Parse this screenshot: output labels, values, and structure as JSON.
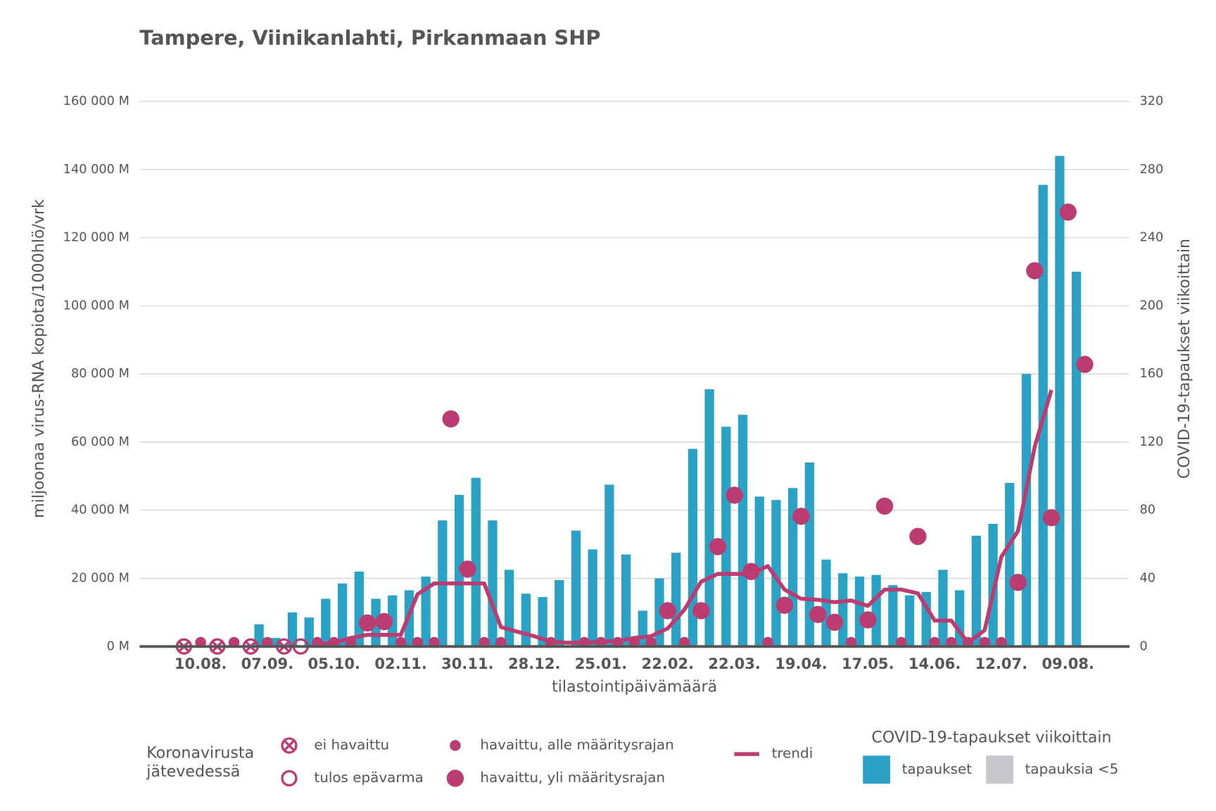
{
  "chart_data": {
    "type": "bar",
    "title": "Tampere, Viinikanlahti, Pirkanmaan SHP",
    "xlabel": "tilastointipäivämäärä",
    "ylabel": "miljoonaa virus-RNA kopiota/1000hlö/vrk",
    "y2label": "COVID-19-tapaukset viikoittain",
    "legend_title": [
      "Koronavirusta",
      "jätevedessä"
    ],
    "categories": [
      null,
      "10.08.",
      null,
      null,
      null,
      "07.09.",
      null,
      null,
      null,
      "05.10.",
      null,
      null,
      null,
      "02.11.",
      null,
      null,
      null,
      "30.11.",
      null,
      null,
      null,
      "28.12.",
      null,
      null,
      null,
      "25.01.",
      null,
      null,
      null,
      "22.02.",
      null,
      null,
      null,
      "22.03.",
      null,
      null,
      null,
      "19.04.",
      null,
      null,
      null,
      "17.05.",
      null,
      null,
      null,
      "14.06.",
      null,
      null,
      null,
      "12.07.",
      null,
      null,
      null,
      "09.08.",
      null
    ],
    "ylim": [
      0,
      160000
    ],
    "yticks": [
      {
        "value": 0,
        "label": "0 M"
      },
      {
        "value": 20000,
        "label": "20 000 M"
      },
      {
        "value": 40000,
        "label": "40 000 M"
      },
      {
        "value": 60000,
        "label": "60 000 M"
      },
      {
        "value": 80000,
        "label": "80 000 M"
      },
      {
        "value": 100000,
        "label": "100 000 M"
      },
      {
        "value": 120000,
        "label": "120 000 M"
      },
      {
        "value": 140000,
        "label": "140 000 M"
      },
      {
        "value": 160000,
        "label": "160 000 M"
      }
    ],
    "y2lim": [
      0,
      320
    ],
    "y2ticks": [
      0,
      40,
      80,
      120,
      160,
      200,
      240,
      280,
      320
    ],
    "grid": true,
    "series": [
      {
        "name": "tapaukset",
        "type": "bar",
        "axis": "y2",
        "color": "#2aa1c5",
        "values": [
          null,
          null,
          null,
          null,
          13,
          5,
          20,
          17,
          28,
          37,
          44,
          28,
          30,
          33,
          41,
          74,
          89,
          99,
          74,
          45,
          31,
          29,
          39,
          68,
          57,
          95,
          54,
          21,
          40,
          55,
          116,
          151,
          129,
          136,
          88,
          86,
          93,
          108,
          51,
          43,
          41,
          42,
          36,
          30,
          32,
          45,
          33,
          65,
          72,
          96,
          160,
          271,
          288,
          220,
          null
        ]
      },
      {
        "name": "tapauksia <5",
        "type": "bar",
        "axis": "y2",
        "color": "#c6c6cb",
        "values": [
          null,
          null,
          null,
          null,
          null,
          null,
          null,
          null,
          null,
          null,
          null,
          null,
          null,
          null,
          null,
          null,
          null,
          null,
          null,
          null,
          null,
          null,
          null,
          null,
          null,
          null,
          null,
          null,
          null,
          null,
          null,
          null,
          null,
          null,
          null,
          null,
          null,
          null,
          null,
          null,
          null,
          null,
          null,
          null,
          null,
          null,
          null,
          null,
          null,
          null,
          null,
          null,
          null,
          null,
          null
        ]
      },
      {
        "name": "ei havaittu",
        "type": "scatter",
        "marker": "crossed-circle",
        "color": "#bb3c70",
        "values": [
          0,
          null,
          0,
          null,
          0,
          null,
          0,
          null,
          null,
          null,
          null,
          null,
          null,
          null,
          null,
          null,
          null,
          null,
          null,
          null,
          null,
          null,
          null,
          null,
          null,
          null,
          null,
          null,
          null,
          null,
          null,
          null,
          null,
          null,
          null,
          null,
          null,
          null,
          null,
          null,
          null,
          null,
          null,
          null,
          null,
          null,
          null,
          null,
          null,
          null,
          null,
          null,
          null,
          null,
          null
        ]
      },
      {
        "name": "tulos epävarma",
        "type": "scatter",
        "marker": "open-circle",
        "color": "#bb3c70",
        "values": [
          null,
          null,
          null,
          null,
          null,
          null,
          null,
          0,
          null,
          null,
          null,
          null,
          null,
          null,
          null,
          null,
          null,
          null,
          null,
          null,
          null,
          null,
          null,
          null,
          null,
          null,
          null,
          null,
          null,
          null,
          null,
          null,
          null,
          null,
          null,
          null,
          null,
          null,
          null,
          null,
          null,
          null,
          null,
          null,
          null,
          null,
          null,
          null,
          null,
          null,
          null,
          null,
          null,
          null,
          null
        ]
      },
      {
        "name": "havaittu, alle määritysrajan",
        "type": "scatter",
        "marker": "small-dot",
        "color": "#bb3c70",
        "values": [
          null,
          1200,
          null,
          1200,
          null,
          1200,
          null,
          null,
          1200,
          1200,
          1200,
          null,
          null,
          1200,
          1200,
          1200,
          null,
          null,
          1200,
          1200,
          null,
          null,
          1200,
          null,
          1200,
          1200,
          1200,
          1200,
          1200,
          null,
          1200,
          null,
          null,
          null,
          null,
          1200,
          null,
          null,
          null,
          null,
          1200,
          null,
          null,
          1200,
          null,
          1200,
          1200,
          1200,
          1200,
          1200,
          null,
          null,
          null,
          null,
          null
        ]
      },
      {
        "name": "havaittu, yli määritysrajan",
        "type": "scatter",
        "marker": "large-dot",
        "color": "#bb3c70",
        "values": [
          null,
          null,
          null,
          null,
          null,
          null,
          null,
          null,
          null,
          null,
          null,
          6900,
          7300,
          null,
          null,
          null,
          66800,
          22700,
          null,
          null,
          null,
          null,
          null,
          null,
          null,
          null,
          null,
          null,
          null,
          10500,
          null,
          10500,
          29300,
          44400,
          22000,
          null,
          12100,
          38200,
          9400,
          7100,
          null,
          7800,
          41200,
          null,
          32300,
          null,
          null,
          null,
          null,
          null,
          18800,
          110300,
          37800,
          127500,
          82800
        ]
      },
      {
        "name": "trendi",
        "type": "line",
        "color": "#bb3c70",
        "values": [
          null,
          null,
          null,
          null,
          null,
          null,
          null,
          null,
          700,
          1100,
          2500,
          3400,
          3400,
          3400,
          15300,
          18500,
          18500,
          18500,
          18500,
          5700,
          4300,
          3000,
          1400,
          1100,
          1100,
          1400,
          1600,
          2500,
          3000,
          5300,
          10800,
          19000,
          21300,
          21300,
          21300,
          23600,
          16700,
          14000,
          13700,
          13000,
          13500,
          11900,
          16700,
          16700,
          15600,
          7600,
          7600,
          1100,
          4800,
          26300,
          33900,
          58600,
          75300,
          null,
          null
        ]
      }
    ]
  }
}
